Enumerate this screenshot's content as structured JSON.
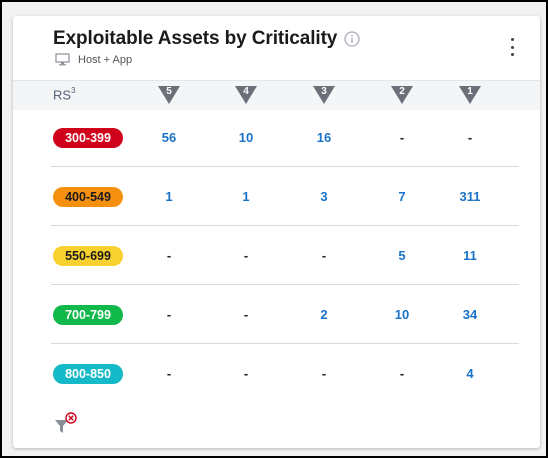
{
  "card": {
    "title": "Exploitable Assets by Criticality",
    "subtitle": "Host + App"
  },
  "header": {
    "rs_label": "RS",
    "rs_superscript": "3",
    "criticality_levels": [
      "5",
      "4",
      "3",
      "2",
      "1"
    ]
  },
  "rows": [
    {
      "range": "300-399",
      "color": "#d0021b",
      "text_color": "#ffffff",
      "cells": [
        "56",
        "10",
        "16",
        "-",
        "-"
      ]
    },
    {
      "range": "400-549",
      "color": "#f5900f",
      "text_color": "#1b1b1b",
      "cells": [
        "1",
        "1",
        "3",
        "7",
        "311"
      ]
    },
    {
      "range": "550-699",
      "color": "#f8d12f",
      "text_color": "#1b1b1b",
      "cells": [
        "-",
        "-",
        "-",
        "5",
        "11"
      ]
    },
    {
      "range": "700-799",
      "color": "#11b84a",
      "text_color": "#ffffff",
      "cells": [
        "-",
        "-",
        "2",
        "10",
        "34"
      ]
    },
    {
      "range": "800-850",
      "color": "#16b9c8",
      "text_color": "#ffffff",
      "cells": [
        "-",
        "-",
        "-",
        "-",
        "4"
      ]
    }
  ],
  "icons": {
    "info": "info-icon",
    "monitor": "monitor-icon",
    "menu": "kebab-menu-icon",
    "filter_clear": "filter-clear-icon"
  },
  "colors": {
    "value_link": "#1a73c8",
    "header_band": "#f4f5f7",
    "triangle": "#6b6f77"
  }
}
